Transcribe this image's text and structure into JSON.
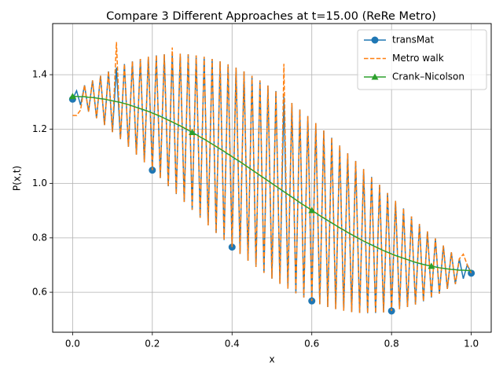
{
  "chart_data": {
    "type": "line",
    "title": "Compare 3 Different Approaches at t=15.00 (ReRe Metro)",
    "xlabel": "x",
    "ylabel": "P(x,t)",
    "xlim": [
      -0.05,
      1.05
    ],
    "ylim": [
      0.453,
      1.588
    ],
    "xticks": [
      {
        "value": 0,
        "label": "0.0"
      },
      0.2,
      0.4,
      0.6,
      0.8,
      {
        "value": 1,
        "label": "1.0"
      }
    ],
    "yticks": [
      0.6,
      0.8,
      {
        "value": 1,
        "label": "1.0"
      },
      1.2,
      1.4
    ],
    "grid": true,
    "legend": "upper right",
    "x": [
      0,
      0.01,
      0.02,
      0.03,
      0.04,
      0.05,
      0.06,
      0.07,
      0.08,
      0.09,
      0.1,
      0.11,
      0.12,
      0.13,
      0.14,
      0.15,
      0.16,
      0.17,
      0.18,
      0.19,
      0.2,
      0.21,
      0.22,
      0.23,
      0.24,
      0.25,
      0.26,
      0.27,
      0.28,
      0.29,
      0.3,
      0.31,
      0.32,
      0.33,
      0.34,
      0.35,
      0.36,
      0.37,
      0.38,
      0.39,
      0.4,
      0.41,
      0.42,
      0.43,
      0.44,
      0.45,
      0.46,
      0.47,
      0.48,
      0.49,
      0.5,
      0.51,
      0.52,
      0.53,
      0.54,
      0.55,
      0.56,
      0.57,
      0.58,
      0.59,
      0.6,
      0.61,
      0.62,
      0.63,
      0.64,
      0.65,
      0.66,
      0.67,
      0.68,
      0.69,
      0.7,
      0.71,
      0.72,
      0.73,
      0.74,
      0.75,
      0.76,
      0.77,
      0.78,
      0.79,
      0.8,
      0.81,
      0.82,
      0.83,
      0.84,
      0.85,
      0.86,
      0.87,
      0.88,
      0.89,
      0.9,
      0.91,
      0.92,
      0.93,
      0.94,
      0.95,
      0.96,
      0.97,
      0.98,
      0.99,
      1
    ],
    "series": [
      {
        "name": "transMat",
        "color": "#1f77b4",
        "dash": "solid",
        "marker": "circle",
        "marker_every": 20,
        "values": [
          1.31,
          1.341,
          1.288,
          1.361,
          1.264,
          1.379,
          1.24,
          1.396,
          1.215,
          1.412,
          1.189,
          1.426,
          1.163,
          1.439,
          1.135,
          1.449,
          1.106,
          1.458,
          1.078,
          1.466,
          1.049,
          1.471,
          1.02,
          1.475,
          0.99,
          1.476,
          0.961,
          1.477,
          0.932,
          1.475,
          0.903,
          1.471,
          0.874,
          1.466,
          0.846,
          1.458,
          0.818,
          1.449,
          0.792,
          1.438,
          0.766,
          1.426,
          0.741,
          1.412,
          0.716,
          1.396,
          0.693,
          1.379,
          0.671,
          1.36,
          0.65,
          1.34,
          0.631,
          1.319,
          0.613,
          1.296,
          0.596,
          1.272,
          0.581,
          1.248,
          0.568,
          1.222,
          0.556,
          1.195,
          0.546,
          1.168,
          0.538,
          1.14,
          0.532,
          1.111,
          0.527,
          1.083,
          0.524,
          1.053,
          0.523,
          1.024,
          0.524,
          0.995,
          0.526,
          0.965,
          0.531,
          0.936,
          0.538,
          0.908,
          0.546,
          0.879,
          0.555,
          0.851,
          0.567,
          0.824,
          0.581,
          0.798,
          0.595,
          0.772,
          0.612,
          0.747,
          0.63,
          0.723,
          0.65,
          0.701,
          0.67
        ]
      },
      {
        "name": "Metro walk",
        "color": "#ff7f0e",
        "dash": "dashed",
        "marker": "none",
        "marker_every": 0,
        "values": [
          1.25,
          1.25,
          1.27,
          1.361,
          1.264,
          1.379,
          1.24,
          1.396,
          1.215,
          1.412,
          1.189,
          1.52,
          1.163,
          1.439,
          1.135,
          1.449,
          1.106,
          1.458,
          1.078,
          1.466,
          1.049,
          1.471,
          1.02,
          1.475,
          0.99,
          1.5,
          0.961,
          1.477,
          0.932,
          1.475,
          0.903,
          1.471,
          0.874,
          1.466,
          0.846,
          1.458,
          0.818,
          1.449,
          0.792,
          1.438,
          0.766,
          1.426,
          0.741,
          1.412,
          0.716,
          1.396,
          0.693,
          1.379,
          0.671,
          1.36,
          0.65,
          1.34,
          0.631,
          1.44,
          0.613,
          1.296,
          0.596,
          1.272,
          0.581,
          1.248,
          0.568,
          1.222,
          0.556,
          1.195,
          0.546,
          1.168,
          0.538,
          1.14,
          0.532,
          1.111,
          0.527,
          1.083,
          0.524,
          1.053,
          0.523,
          1.024,
          0.524,
          0.995,
          0.526,
          0.965,
          0.531,
          0.936,
          0.538,
          0.908,
          0.546,
          0.879,
          0.555,
          0.851,
          0.567,
          0.824,
          0.581,
          0.798,
          0.595,
          0.772,
          0.612,
          0.747,
          0.63,
          0.723,
          0.74,
          0.7,
          0.67
        ]
      },
      {
        "name": "Crank–Nicolson",
        "color": "#2ca02c",
        "dash": "solid",
        "marker": "triangle",
        "marker_every": 30,
        "values": [
          1.32,
          1.32,
          1.319,
          1.319,
          1.317,
          1.316,
          1.314,
          1.312,
          1.31,
          1.307,
          1.304,
          1.301,
          1.298,
          1.294,
          1.29,
          1.285,
          1.28,
          1.275,
          1.27,
          1.265,
          1.259,
          1.253,
          1.247,
          1.24,
          1.233,
          1.226,
          1.219,
          1.212,
          1.204,
          1.196,
          1.188,
          1.18,
          1.171,
          1.163,
          1.154,
          1.145,
          1.136,
          1.127,
          1.118,
          1.108,
          1.099,
          1.089,
          1.08,
          1.07,
          1.06,
          1.05,
          1.04,
          1.03,
          1.02,
          1.01,
          1.0,
          0.99,
          0.98,
          0.97,
          0.96,
          0.95,
          0.94,
          0.93,
          0.92,
          0.911,
          0.901,
          0.892,
          0.882,
          0.873,
          0.864,
          0.855,
          0.846,
          0.837,
          0.829,
          0.82,
          0.812,
          0.804,
          0.796,
          0.788,
          0.781,
          0.774,
          0.767,
          0.76,
          0.753,
          0.747,
          0.741,
          0.735,
          0.73,
          0.725,
          0.72,
          0.715,
          0.71,
          0.706,
          0.702,
          0.699,
          0.696,
          0.693,
          0.69,
          0.688,
          0.686,
          0.684,
          0.683,
          0.681,
          0.681,
          0.68,
          0.68
        ]
      }
    ]
  }
}
